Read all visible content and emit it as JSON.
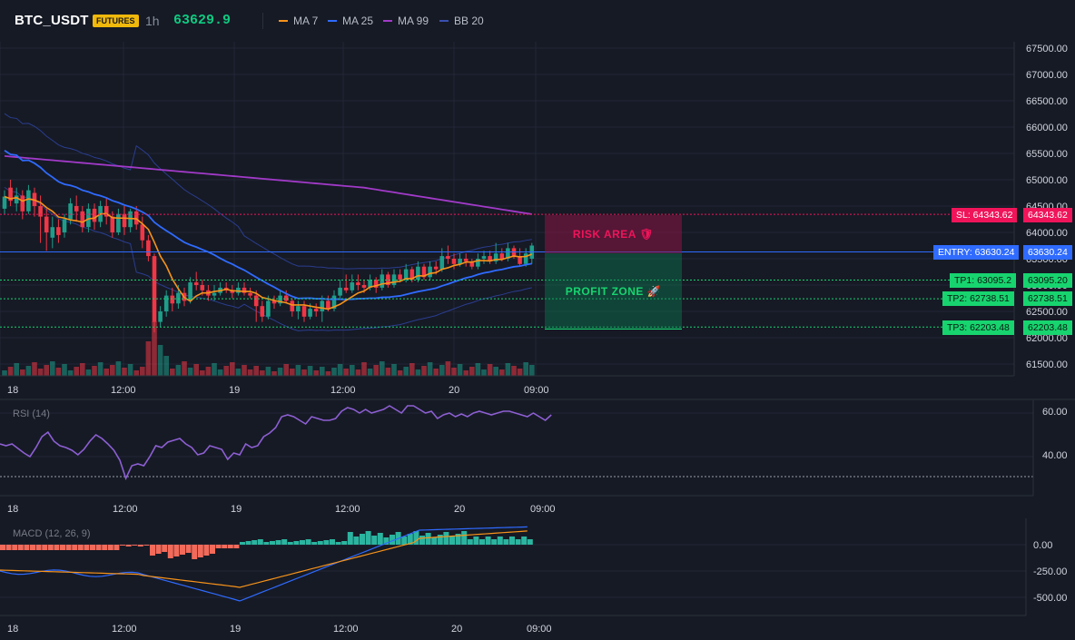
{
  "header": {
    "symbol": "BTC_USDT",
    "badge": "FUTURES",
    "timeframe": "1h",
    "price": "63629.9",
    "legend": [
      {
        "label": "MA 7",
        "color": "#f7931a"
      },
      {
        "label": "MA 25",
        "color": "#2f6bff"
      },
      {
        "label": "MA 99",
        "color": "#a23ac9"
      },
      {
        "label": "BB 20",
        "color": "#2a3d8f"
      }
    ]
  },
  "colors": {
    "up": "#1e9e8a",
    "down": "#f23645",
    "bg": "#161a25",
    "grid": "#222736"
  },
  "time_axis": {
    "labels": [
      "18",
      "12:00",
      "19",
      "12:00",
      "20",
      "09:00"
    ]
  },
  "main_axis": {
    "ticks": [
      "67500.00",
      "67000.00",
      "66500.00",
      "66000.00",
      "65500.00",
      "65000.00",
      "64500.00",
      "64000.00",
      "63500.00",
      "63000.00",
      "62500.00",
      "62000.00",
      "61500.00"
    ]
  },
  "levels": [
    {
      "id": "sl",
      "label": "SL: 64343.62",
      "value": "64343.62",
      "color": "#f0145a"
    },
    {
      "id": "entry",
      "label": "ENTRY: 63630.24",
      "value": "63630.24",
      "color": "#2f6bff"
    },
    {
      "id": "tp1",
      "label": "TP1: 63095.2",
      "value": "63095.20",
      "color": "#17d46f"
    },
    {
      "id": "tp2",
      "label": "TP2: 62738.51",
      "value": "62738.51",
      "color": "#17d46f"
    },
    {
      "id": "tp3",
      "label": "TP3: 62203.48",
      "value": "62203.48",
      "color": "#17d46f"
    }
  ],
  "zones": {
    "risk": "RISK AREA 🛡",
    "profit": "PROFIT ZONE 🚀"
  },
  "rsi": {
    "title": "RSI (14)",
    "ticks": [
      "60.00",
      "40.00"
    ]
  },
  "macd": {
    "title": "MACD (12, 26, 9)",
    "ticks": [
      "0.00",
      "-250.00",
      "-500.00"
    ]
  }
}
